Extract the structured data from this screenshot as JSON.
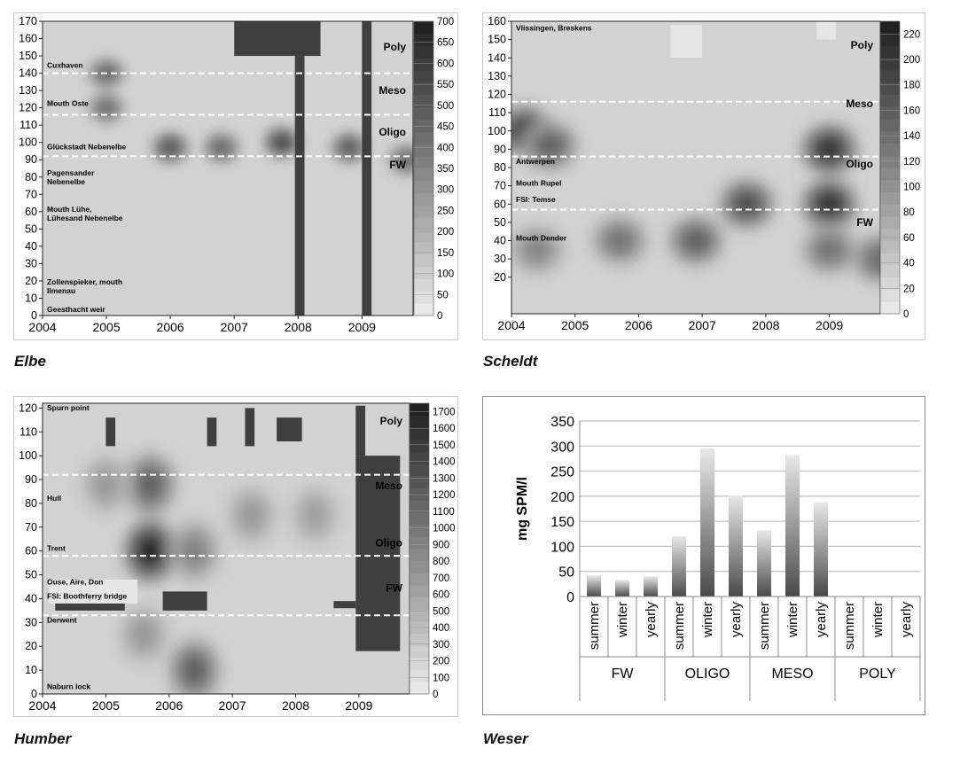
{
  "chart_data": [
    {
      "type": "heatmap",
      "title": "Elbe",
      "x_ticks": [
        "2004",
        "2005",
        "2006",
        "2007",
        "2008",
        "2009"
      ],
      "xlim": [
        2004,
        2009.8
      ],
      "ylim": [
        0,
        170
      ],
      "y_ticks": [
        0,
        10,
        20,
        30,
        40,
        50,
        60,
        70,
        80,
        90,
        100,
        110,
        120,
        130,
        140,
        150,
        160,
        170
      ],
      "colorbar_range": [
        0,
        700
      ],
      "colorbar_ticks": [
        0,
        50,
        100,
        150,
        200,
        250,
        300,
        350,
        400,
        450,
        500,
        550,
        600,
        650,
        700
      ],
      "zone_boundaries": [
        92,
        116,
        140
      ],
      "zones": [
        "Poly",
        "Meso",
        "Oligo",
        "FW"
      ],
      "stations": [
        {
          "label": "Cuxhaven",
          "km": 143
        },
        {
          "label": "Mouth Oste",
          "km": 121
        },
        {
          "label": "Glückstadt Nebenelbe",
          "km": 96
        },
        {
          "label": "Pagensander\nNebenelbe",
          "km": 81
        },
        {
          "label": "Mouth Lühe,\nLühesand Nebenelbe",
          "km": 60
        },
        {
          "label": "Zollenspieker, mouth\nIlmenau",
          "km": 18
        },
        {
          "label": "Geesthacht weir",
          "km": 2
        }
      ],
      "hotspots": [
        {
          "x": 2005.0,
          "y": 140,
          "v": 420
        },
        {
          "x": 2005.0,
          "y": 120,
          "v": 400
        },
        {
          "x": 2006.0,
          "y": 97,
          "v": 480
        },
        {
          "x": 2006.8,
          "y": 97,
          "v": 420
        },
        {
          "x": 2007.75,
          "y": 100,
          "v": 520
        },
        {
          "x": 2008.8,
          "y": 97,
          "v": 460
        },
        {
          "x": 2009.7,
          "y": 90,
          "v": 420
        }
      ]
    },
    {
      "type": "heatmap",
      "title": "Scheldt",
      "x_ticks": [
        "2004",
        "2005",
        "2006",
        "2007",
        "2008",
        "2009"
      ],
      "xlim": [
        2004,
        2009.8
      ],
      "ylim": [
        0,
        160
      ],
      "y_ticks": [
        20,
        30,
        40,
        50,
        60,
        70,
        80,
        90,
        100,
        110,
        120,
        130,
        140,
        150,
        160
      ],
      "colorbar_range": [
        0,
        230
      ],
      "colorbar_ticks": [
        0,
        20,
        40,
        60,
        80,
        100,
        120,
        140,
        160,
        180,
        200,
        220
      ],
      "zone_boundaries": [
        57,
        86,
        116
      ],
      "zones": [
        "Poly",
        "Meso",
        "Oligo",
        "FW"
      ],
      "stations": [
        {
          "label": "Vlissingen, Breskens",
          "km": 155
        },
        {
          "label": "Antwerpen",
          "km": 82
        },
        {
          "label": "Mouth Rupel",
          "km": 70
        },
        {
          "label": "FSI: Temse",
          "km": 61
        },
        {
          "label": "Mouth Dender",
          "km": 40
        }
      ],
      "hotspots": [
        {
          "x": 2004.2,
          "y": 100,
          "v": 190
        },
        {
          "x": 2004.6,
          "y": 92,
          "v": 150
        },
        {
          "x": 2004.4,
          "y": 35,
          "v": 110
        },
        {
          "x": 2005.7,
          "y": 40,
          "v": 130
        },
        {
          "x": 2006.9,
          "y": 40,
          "v": 150
        },
        {
          "x": 2007.7,
          "y": 60,
          "v": 170
        },
        {
          "x": 2009.0,
          "y": 90,
          "v": 200
        },
        {
          "x": 2009.0,
          "y": 60,
          "v": 200
        },
        {
          "x": 2009.0,
          "y": 35,
          "v": 130
        },
        {
          "x": 2009.8,
          "y": 30,
          "v": 140
        }
      ]
    },
    {
      "type": "heatmap",
      "title": "Humber",
      "x_ticks": [
        "2004",
        "2005",
        "2006",
        "2007",
        "2008",
        "2009"
      ],
      "xlim": [
        2004,
        2009.8
      ],
      "ylim": [
        0,
        122
      ],
      "y_ticks": [
        0,
        10,
        20,
        30,
        40,
        50,
        60,
        70,
        80,
        90,
        100,
        110,
        120
      ],
      "colorbar_range": [
        0,
        1750
      ],
      "colorbar_ticks": [
        0,
        100,
        200,
        300,
        400,
        500,
        600,
        700,
        800,
        900,
        1000,
        1100,
        1200,
        1300,
        1400,
        1500,
        1600,
        1700
      ],
      "zone_boundaries": [
        33,
        58,
        92
      ],
      "zones": [
        "Poly",
        "Meso",
        "Oligo",
        "FW"
      ],
      "stations": [
        {
          "label": "Spurn point",
          "km": 119
        },
        {
          "label": "Hull",
          "km": 81
        },
        {
          "label": "Trent",
          "km": 60
        },
        {
          "label": "Ouse, Aire, Don",
          "km": 46
        },
        {
          "label": "FSI: Boothferry bridge",
          "km": 40
        },
        {
          "label": "Derwent",
          "km": 30
        },
        {
          "label": "Naburn lock",
          "km": 2
        }
      ],
      "hotspots": [
        {
          "x": 2005.7,
          "y": 60,
          "v": 1700
        },
        {
          "x": 2005.7,
          "y": 88,
          "v": 1200
        },
        {
          "x": 2005.6,
          "y": 25,
          "v": 700
        },
        {
          "x": 2006.4,
          "y": 10,
          "v": 1200
        },
        {
          "x": 2006.4,
          "y": 60,
          "v": 900
        },
        {
          "x": 2007.3,
          "y": 75,
          "v": 700
        },
        {
          "x": 2008.3,
          "y": 75,
          "v": 650
        },
        {
          "x": 2005.0,
          "y": 88,
          "v": 700
        }
      ]
    },
    {
      "type": "bar",
      "title": "Weser",
      "ylabel": "mg SPM/l",
      "ylim": [
        0,
        350
      ],
      "y_ticks": [
        0,
        50,
        100,
        150,
        200,
        250,
        300,
        350
      ],
      "groups": [
        "FW",
        "OLIGO",
        "MESO",
        "POLY"
      ],
      "categories": [
        "summer",
        "winter",
        "yearly",
        "summer",
        "winter",
        "yearly",
        "summer",
        "winter",
        "yearly",
        "summer",
        "winter",
        "yearly"
      ],
      "values": [
        42,
        33,
        40,
        120,
        295,
        202,
        132,
        282,
        188,
        null,
        null,
        null
      ]
    }
  ]
}
